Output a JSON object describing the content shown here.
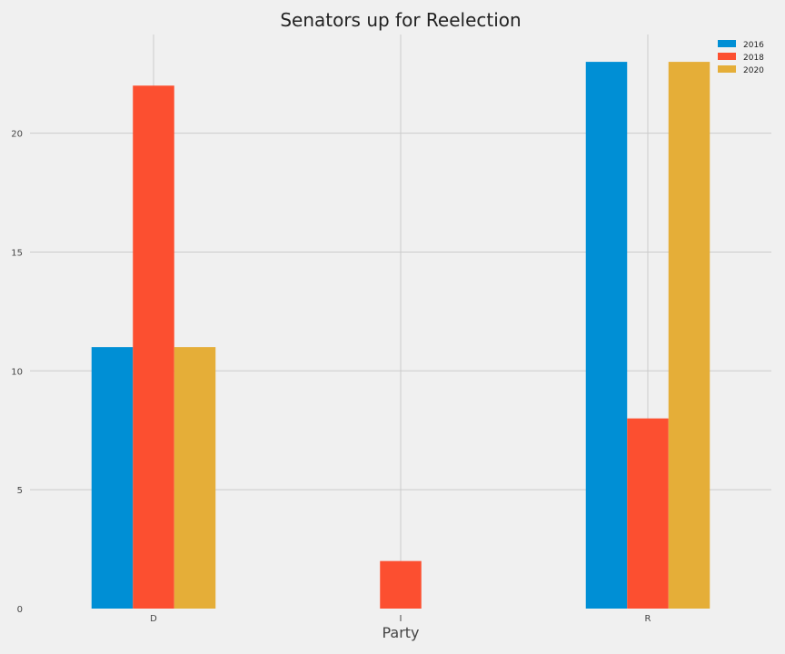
{
  "chart_data": {
    "type": "bar",
    "title": "Senators up for Reelection",
    "xlabel": "Party",
    "ylabel": "",
    "categories": [
      "D",
      "I",
      "R"
    ],
    "series": [
      {
        "name": "2016",
        "values": [
          11,
          0,
          23
        ],
        "color": "#008fd5"
      },
      {
        "name": "2018",
        "values": [
          22,
          2,
          8
        ],
        "color": "#fc4f30"
      },
      {
        "name": "2020",
        "values": [
          11,
          0,
          23
        ],
        "color": "#e5ae38"
      }
    ],
    "ylim": [
      0,
      24.15
    ],
    "yticks": [
      0,
      5,
      10,
      15,
      20
    ],
    "grid": true,
    "legend": "top-right"
  }
}
